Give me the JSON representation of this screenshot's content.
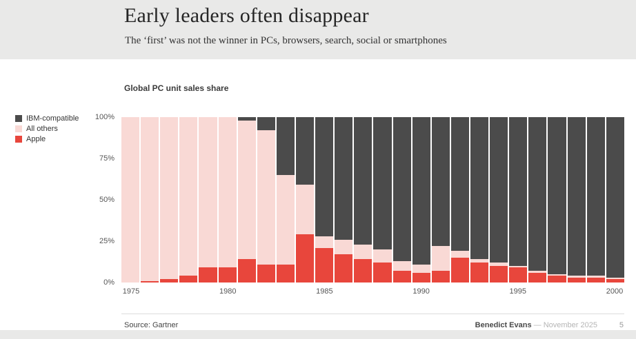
{
  "slide": {
    "title": "Early leaders often disappear",
    "subtitle": "The ‘first’ was not the winner in PCs, browsers, search, social or smartphones"
  },
  "chart": {
    "title": "Global PC unit sales share",
    "legend": [
      {
        "label": "IBM-compatible",
        "color": "#4b4b4b"
      },
      {
        "label": "All others",
        "color": "#f9d9d5"
      },
      {
        "label": "Apple",
        "color": "#e8463c"
      }
    ]
  },
  "chart_data": {
    "type": "bar",
    "stacked": true,
    "title": "Global PC unit sales share",
    "xlabel": "",
    "ylabel": "",
    "ylim": [
      0,
      100
    ],
    "grid": false,
    "legend_position": "left",
    "x": [
      1975,
      1976,
      1977,
      1978,
      1979,
      1980,
      1981,
      1982,
      1983,
      1984,
      1985,
      1986,
      1987,
      1988,
      1989,
      1990,
      1991,
      1992,
      1993,
      1994,
      1995,
      1996,
      1997,
      1998,
      1999,
      2000
    ],
    "series": [
      {
        "name": "Apple",
        "color": "#e8463c",
        "values": [
          0,
          1,
          2,
          4,
          9,
          9,
          14,
          11,
          11,
          29,
          21,
          17,
          14,
          12,
          7,
          6,
          7,
          15,
          12,
          10,
          9,
          6,
          4,
          3,
          3,
          2
        ]
      },
      {
        "name": "All others",
        "color": "#f9d9d5",
        "values": [
          100,
          99,
          98,
          96,
          91,
          91,
          84,
          81,
          54,
          30,
          7,
          9,
          9,
          8,
          6,
          5,
          15,
          4,
          2,
          2,
          1,
          1,
          1,
          1,
          1,
          1
        ]
      },
      {
        "name": "IBM-compatible",
        "color": "#4b4b4b",
        "values": [
          0,
          0,
          0,
          0,
          0,
          0,
          2,
          8,
          35,
          41,
          72,
          74,
          77,
          80,
          87,
          89,
          78,
          81,
          86,
          88,
          90,
          93,
          95,
          96,
          96,
          97
        ]
      }
    ],
    "yticks": [
      "100%",
      "75%",
      "50%",
      "25%",
      "0%"
    ],
    "xticks": [
      "1975",
      "1980",
      "1985",
      "1990",
      "1995",
      "2000"
    ]
  },
  "footer": {
    "source": "Source: Gartner",
    "author": "Benedict Evans",
    "dash": "—",
    "date": "November 2025",
    "page": "5"
  }
}
